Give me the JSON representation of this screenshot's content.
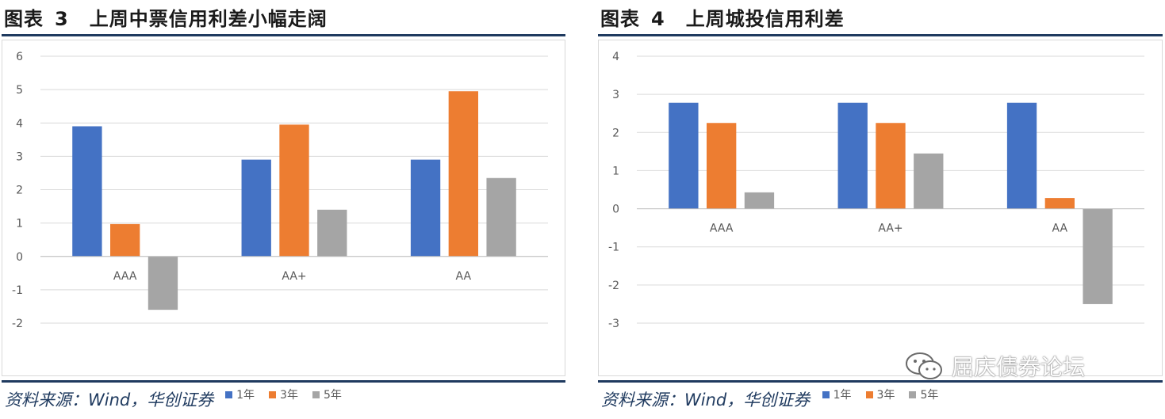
{
  "colors": {
    "series_1y": "#4472c4",
    "series_3y": "#ed7d31",
    "series_5y": "#a5a5a5",
    "rule": "#1f3a5f"
  },
  "left": {
    "title_label": "图表",
    "title_num": "3",
    "title_text": "上周中票信用利差小幅走阔",
    "source": "资料来源：Wind，华创证券"
  },
  "right": {
    "title_label": "图表",
    "title_num": "4",
    "title_text": "上周城投信用利差",
    "source": "资料来源：Wind，华创证券"
  },
  "watermark": {
    "text": "屈庆债券论坛",
    "icon": "wechat-icon"
  },
  "chart_data": [
    {
      "type": "bar",
      "title": "上周中票信用利差小幅走阔",
      "categories": [
        "AAA",
        "AA+",
        "AA"
      ],
      "series": [
        {
          "name": "1年",
          "values": [
            3.9,
            2.9,
            2.9
          ]
        },
        {
          "name": "3年",
          "values": [
            0.97,
            3.95,
            4.95
          ]
        },
        {
          "name": "5年",
          "values": [
            -1.6,
            1.4,
            2.35
          ]
        }
      ],
      "ylim": [
        -2,
        6
      ],
      "yticks": [
        "-2",
        "-1",
        "0",
        "1",
        "2",
        "3",
        "4",
        "5",
        "6"
      ],
      "grid": true,
      "legend": "bottom"
    },
    {
      "type": "bar",
      "title": "上周城投信用利差",
      "categories": [
        "AAA",
        "AA+",
        "AA"
      ],
      "series": [
        {
          "name": "1年",
          "values": [
            2.78,
            2.78,
            2.78
          ]
        },
        {
          "name": "3年",
          "values": [
            2.25,
            2.25,
            0.28
          ]
        },
        {
          "name": "5年",
          "values": [
            0.43,
            1.45,
            -2.5
          ]
        }
      ],
      "ylim": [
        -3,
        4
      ],
      "yticks": [
        "-3",
        "-2",
        "-1",
        "0",
        "1",
        "2",
        "3",
        "4"
      ],
      "grid": true,
      "legend": "bottom"
    }
  ]
}
